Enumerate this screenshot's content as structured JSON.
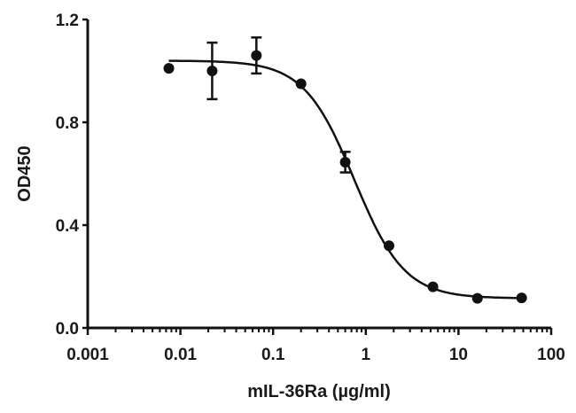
{
  "chart_data": {
    "type": "scatter",
    "title": "",
    "xlabel": "mIL-36Ra (µg/ml)",
    "ylabel": "OD450",
    "xscale": "log",
    "xlim": [
      0.001,
      100
    ],
    "ylim": [
      0.0,
      1.2
    ],
    "x_ticks": [
      "0.001",
      "0.01",
      "0.1",
      "1",
      "10",
      "100"
    ],
    "y_ticks": [
      "0.0",
      "0.4",
      "0.8",
      "1.2"
    ],
    "grid": false,
    "legend": null,
    "series": [
      {
        "name": "OD450",
        "marker": "filled-circle",
        "fit": "sigmoidal dose-response curve",
        "x": [
          0.0075,
          0.022,
          0.066,
          0.2,
          0.6,
          1.78,
          5.3,
          16,
          48
        ],
        "y": [
          1.01,
          1.0,
          1.06,
          0.95,
          0.645,
          0.32,
          0.16,
          0.115,
          0.117
        ],
        "error": [
          0,
          0.11,
          0.07,
          0,
          0.04,
          0,
          0,
          0,
          0
        ]
      }
    ],
    "curve": {
      "top": 1.04,
      "bottom": 0.115,
      "ic50": 0.75,
      "hill": 1.6
    }
  },
  "labels": {
    "xlabel": "mIL-36Ra (µg/ml)",
    "ylabel": "OD450",
    "x_ticks": [
      "0.001",
      "0.01",
      "0.1",
      "1",
      "10",
      "100"
    ],
    "y_ticks": [
      "0.0",
      "0.4",
      "0.8",
      "1.2"
    ]
  },
  "colors": {
    "ink": "#111111",
    "background": "#ffffff"
  }
}
